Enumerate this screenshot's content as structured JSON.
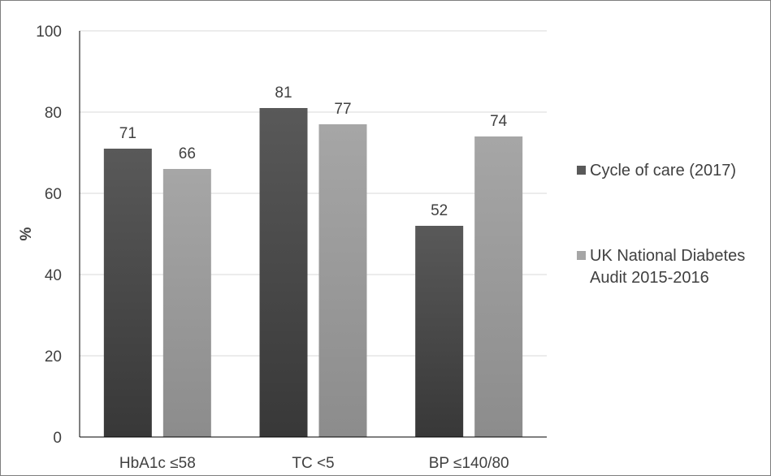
{
  "chart_data": {
    "type": "bar",
    "title": "",
    "xlabel": "",
    "ylabel": "%",
    "ylim": [
      0,
      100
    ],
    "yticks": [
      0,
      20,
      40,
      60,
      80,
      100
    ],
    "grid": "horizontal",
    "legend_position": "right",
    "categories": [
      "HbA1c ≤58",
      "TC <5",
      "BP ≤140/80"
    ],
    "series": [
      {
        "name": "Cycle of care (2017)",
        "color": "#595959",
        "gradient_color": "#383838",
        "values": [
          71,
          81,
          52
        ],
        "labels": [
          "71",
          "81",
          "52"
        ]
      },
      {
        "name_lines": [
          "UK National Diabetes",
          "Audit 2015-2016"
        ],
        "color": "#a6a6a6",
        "gradient_color": "#8c8c8c",
        "values": [
          66,
          77,
          74
        ],
        "labels": [
          "66",
          "77",
          "74"
        ]
      }
    ]
  }
}
